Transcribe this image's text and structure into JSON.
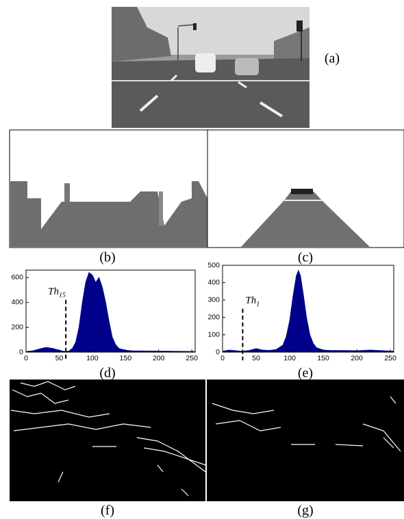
{
  "panel_labels": [
    "(a)",
    "(b)",
    "(c)",
    "(d)",
    "(e)",
    "(f)",
    "(g)"
  ],
  "chart_data": [
    {
      "type": "area",
      "color": "#00008b",
      "x": [
        0,
        10,
        20,
        30,
        40,
        50,
        55,
        60,
        65,
        70,
        75,
        80,
        85,
        90,
        95,
        100,
        105,
        110,
        115,
        120,
        125,
        130,
        135,
        140,
        150,
        160,
        200,
        255
      ],
      "values": [
        5,
        10,
        25,
        38,
        30,
        15,
        8,
        5,
        10,
        30,
        80,
        200,
        400,
        560,
        640,
        620,
        560,
        600,
        520,
        400,
        250,
        120,
        60,
        30,
        15,
        10,
        8,
        5
      ],
      "xlim": [
        0,
        255
      ],
      "ylim": [
        0,
        660
      ],
      "xticks": [
        0,
        50,
        100,
        150,
        200,
        250
      ],
      "yticks": [
        0,
        200,
        400,
        600
      ],
      "annotation": {
        "text": "Th",
        "subscript": "15",
        "x": 60,
        "y": 420
      }
    },
    {
      "type": "area",
      "color": "#00008b",
      "x": [
        0,
        10,
        20,
        30,
        40,
        50,
        60,
        70,
        80,
        90,
        95,
        100,
        105,
        110,
        113,
        116,
        120,
        125,
        130,
        135,
        140,
        150,
        160,
        200,
        220,
        255
      ],
      "values": [
        5,
        12,
        8,
        5,
        10,
        20,
        12,
        10,
        15,
        40,
        90,
        180,
        320,
        440,
        470,
        440,
        340,
        200,
        100,
        50,
        25,
        12,
        10,
        8,
        12,
        5
      ],
      "xlim": [
        0,
        255
      ],
      "ylim": [
        0,
        500
      ],
      "xticks": [
        0,
        50,
        100,
        150,
        200,
        250
      ],
      "yticks": [
        0,
        100,
        200,
        300,
        400,
        500
      ],
      "annotation": {
        "text": "Th",
        "subscript": "1",
        "x": 30,
        "y": 250
      }
    }
  ]
}
